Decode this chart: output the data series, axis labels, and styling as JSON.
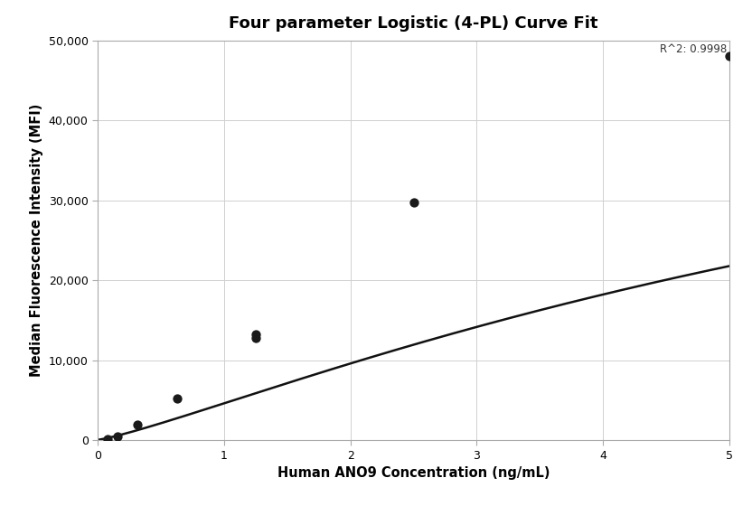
{
  "title": "Four parameter Logistic (4-PL) Curve Fit",
  "xlabel": "Human ANO9 Concentration (ng/mL)",
  "ylabel": "Median Fluorescence Intensity (MFI)",
  "r_squared": "R^2: 0.9998",
  "data_x": [
    0.078,
    0.156,
    0.313,
    0.625,
    1.25,
    1.25,
    2.5,
    5.0
  ],
  "data_y": [
    150,
    500,
    2000,
    5200,
    12800,
    13200,
    29800,
    48000
  ],
  "xlim": [
    0,
    5.0
  ],
  "ylim": [
    0,
    50000
  ],
  "yticks": [
    0,
    10000,
    20000,
    30000,
    40000,
    50000
  ],
  "xticks": [
    0,
    1,
    2,
    3,
    4,
    5
  ],
  "background_color": "#ffffff",
  "grid_color": "#d0d0d0",
  "line_color": "#111111",
  "dot_color": "#1a1a1a",
  "dot_size": 55,
  "title_fontsize": 13,
  "label_fontsize": 10.5,
  "tick_fontsize": 9,
  "annotation_fontsize": 8.5,
  "spine_color": "#aaaaaa",
  "linewidth": 1.8
}
